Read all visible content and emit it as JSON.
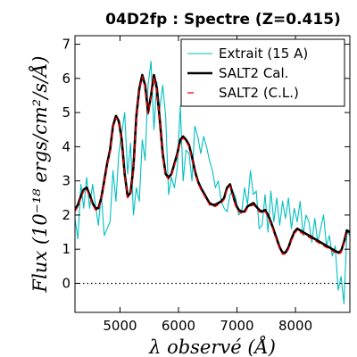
{
  "chart_data": {
    "type": "line",
    "title": "04D2fp : Spectre (Z=0.415)",
    "xlabel": "λ observé (Å)",
    "ylabel": "Flux (10⁻¹⁸ ergs/cm²/s/Å)",
    "xlim": [
      4230,
      8930
    ],
    "ylim": [
      -0.85,
      7.25
    ],
    "x_ticks": [
      5000,
      6000,
      7000,
      8000
    ],
    "y_ticks": [
      0,
      1,
      2,
      3,
      4,
      5,
      6,
      7
    ],
    "zero_line": true,
    "legend_placement": "top-right",
    "series": [
      {
        "name": "Extrait (15 A)",
        "color": "#00bfbf",
        "style": "solid-thin",
        "x": [
          4230,
          4280,
          4330,
          4380,
          4430,
          4480,
          4530,
          4580,
          4630,
          4680,
          4730,
          4780,
          4830,
          4880,
          4930,
          4980,
          5030,
          5080,
          5130,
          5180,
          5230,
          5280,
          5330,
          5380,
          5430,
          5480,
          5530,
          5580,
          5630,
          5680,
          5730,
          5780,
          5830,
          5880,
          5930,
          5980,
          6030,
          6080,
          6130,
          6180,
          6230,
          6280,
          6330,
          6380,
          6430,
          6480,
          6530,
          6580,
          6630,
          6680,
          6730,
          6780,
          6830,
          6880,
          6930,
          6980,
          7030,
          7080,
          7130,
          7180,
          7230,
          7280,
          7330,
          7380,
          7430,
          7480,
          7530,
          7580,
          7630,
          7680,
          7730,
          7780,
          7830,
          7880,
          7930,
          7980,
          8030,
          8080,
          8130,
          8180,
          8230,
          8280,
          8330,
          8380,
          8430,
          8480,
          8530,
          8580,
          8630,
          8680,
          8730,
          8780,
          8830,
          8880,
          8930
        ],
        "values": [
          1.9,
          1.3,
          2.9,
          2.2,
          3.1,
          2.2,
          2.9,
          2.3,
          1.7,
          2.6,
          1.4,
          1.6,
          1.8,
          3.3,
          2.4,
          3.8,
          4.4,
          5.0,
          3.2,
          4.1,
          2.0,
          2.8,
          2.4,
          4.2,
          3.6,
          5.8,
          6.5,
          4.5,
          5.9,
          5.1,
          5.8,
          4.9,
          2.6,
          3.1,
          2.8,
          3.4,
          5.2,
          3.0,
          3.9,
          3.8,
          3.0,
          4.6,
          4.3,
          3.8,
          4.3,
          4.0,
          3.6,
          3.3,
          2.8,
          3.0,
          2.4,
          2.2,
          2.1,
          2.6,
          2.7,
          2.5,
          2.0,
          2.1,
          2.8,
          2.3,
          3.3,
          2.6,
          2.7,
          1.6,
          1.7,
          2.6,
          1.5,
          2.7,
          1.8,
          2.5,
          1.7,
          2.4,
          1.9,
          2.5,
          1.6,
          2.2,
          1.8,
          2.4,
          1.4,
          2.0,
          1.8,
          1.2,
          1.9,
          1.2,
          1.6,
          2.0,
          1.1,
          1.4,
          0.8,
          1.1,
          -0.2,
          0.2,
          -0.6,
          1.5,
          1.4
        ]
      },
      {
        "name": "SALT2 Cal.",
        "color": "#000000",
        "style": "solid-thick",
        "x": [
          4230,
          4280,
          4330,
          4380,
          4430,
          4480,
          4530,
          4580,
          4630,
          4680,
          4730,
          4780,
          4830,
          4880,
          4930,
          4980,
          5030,
          5080,
          5130,
          5180,
          5230,
          5280,
          5330,
          5380,
          5430,
          5480,
          5530,
          5580,
          5630,
          5680,
          5730,
          5780,
          5830,
          5880,
          5930,
          5980,
          6030,
          6080,
          6130,
          6180,
          6230,
          6280,
          6330,
          6380,
          6430,
          6480,
          6530,
          6580,
          6630,
          6680,
          6730,
          6780,
          6830,
          6880,
          6930,
          6980,
          7030,
          7080,
          7130,
          7180,
          7230,
          7280,
          7330,
          7380,
          7430,
          7480,
          7530,
          7580,
          7630,
          7680,
          7730,
          7780,
          7830,
          7880,
          7930,
          7980,
          8030,
          8080,
          8130,
          8180,
          8230,
          8280,
          8330,
          8380,
          8430,
          8480,
          8530,
          8580,
          8630,
          8680,
          8730,
          8780,
          8830,
          8880,
          8930
        ],
        "values": [
          2.15,
          2.3,
          2.55,
          2.75,
          2.8,
          2.6,
          2.35,
          2.2,
          2.2,
          2.5,
          3.0,
          3.5,
          3.9,
          4.6,
          4.9,
          4.75,
          4.2,
          3.2,
          2.55,
          2.65,
          3.4,
          4.9,
          5.7,
          6.1,
          5.8,
          5.0,
          5.5,
          6.1,
          5.7,
          4.8,
          3.8,
          3.2,
          3.1,
          3.2,
          3.5,
          3.8,
          4.2,
          4.3,
          4.2,
          4.05,
          3.7,
          3.3,
          3.0,
          2.8,
          2.65,
          2.5,
          2.35,
          2.3,
          2.3,
          2.35,
          2.4,
          2.5,
          2.8,
          2.9,
          2.6,
          2.3,
          2.15,
          2.1,
          2.1,
          2.25,
          2.3,
          2.35,
          2.25,
          2.15,
          2.1,
          2.15,
          2.0,
          1.8,
          1.55,
          1.3,
          1.05,
          0.9,
          0.9,
          1.05,
          1.3,
          1.5,
          1.6,
          1.55,
          1.5,
          1.45,
          1.4,
          1.35,
          1.3,
          1.25,
          1.2,
          1.15,
          1.1,
          1.05,
          1.0,
          0.95,
          0.9,
          0.95,
          1.2,
          1.55,
          1.5
        ]
      },
      {
        "name": "SALT2 (C.L.)",
        "color": "#ff0000",
        "style": "dashed",
        "x": [
          4230,
          4280,
          4330,
          4380,
          4430,
          4480,
          4530,
          4580,
          4630,
          4680,
          4730,
          4780,
          4830,
          4880,
          4930,
          4980,
          5030,
          5080,
          5130,
          5180,
          5230,
          5280,
          5330,
          5380,
          5430,
          5480,
          5530,
          5580,
          5630,
          5680,
          5730,
          5780,
          5830,
          5880,
          5930,
          5980,
          6030,
          6080,
          6130,
          6180,
          6230,
          6280,
          6330,
          6380,
          6430,
          6480,
          6530,
          6580,
          6630,
          6680,
          6730,
          6780,
          6830,
          6880,
          6930,
          6980,
          7030,
          7080,
          7130,
          7180,
          7230,
          7280,
          7330,
          7380,
          7430,
          7480,
          7530,
          7580,
          7630,
          7680,
          7730,
          7780,
          7830,
          7880,
          7930,
          7980,
          8030,
          8080,
          8130,
          8180,
          8230,
          8280,
          8330,
          8380,
          8430,
          8480,
          8530,
          8580,
          8630,
          8680,
          8730,
          8780,
          8830,
          8880,
          8930
        ],
        "values": [
          2.1,
          2.25,
          2.5,
          2.7,
          2.75,
          2.55,
          2.3,
          2.15,
          2.15,
          2.45,
          2.95,
          3.45,
          3.85,
          4.55,
          4.85,
          4.7,
          4.15,
          3.15,
          2.5,
          2.6,
          3.35,
          4.85,
          5.65,
          6.05,
          5.75,
          4.95,
          5.45,
          6.05,
          5.65,
          4.75,
          3.75,
          3.15,
          3.05,
          3.15,
          3.45,
          3.75,
          4.15,
          4.25,
          4.15,
          4.0,
          3.65,
          3.25,
          2.95,
          2.75,
          2.6,
          2.45,
          2.3,
          2.25,
          2.25,
          2.3,
          2.35,
          2.45,
          2.75,
          2.85,
          2.55,
          2.25,
          2.1,
          2.05,
          2.05,
          2.2,
          2.25,
          2.3,
          2.2,
          2.1,
          2.05,
          2.1,
          1.95,
          1.75,
          1.5,
          1.25,
          1.0,
          0.85,
          0.85,
          1.0,
          1.25,
          1.45,
          1.55,
          1.5,
          1.45,
          1.4,
          1.35,
          1.3,
          1.25,
          1.2,
          1.15,
          1.1,
          1.05,
          1.0,
          0.95,
          0.9,
          0.85,
          0.9,
          1.15,
          1.5,
          1.45
        ]
      }
    ]
  }
}
